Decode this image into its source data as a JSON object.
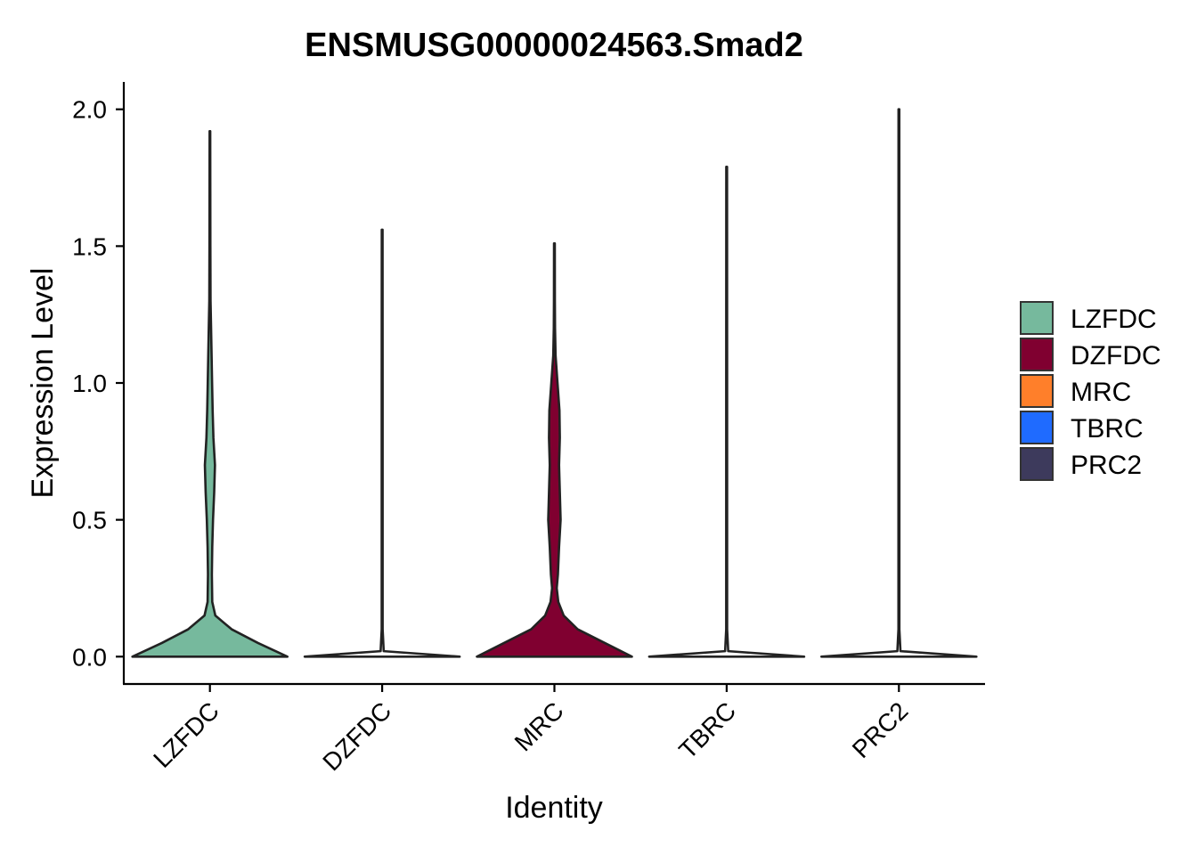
{
  "chart_data": {
    "type": "violin",
    "title": "ENSMUSG00000024563.Smad2",
    "xlabel": "Identity",
    "ylabel": "Expression Level",
    "ylim": [
      -0.1,
      2.1
    ],
    "yticks": [
      "0.0",
      "0.5",
      "1.0",
      "1.5",
      "2.0"
    ],
    "categories": [
      "LZFDC",
      "DZFDC",
      "MRC",
      "TBRC",
      "PRC2"
    ],
    "grid": false,
    "legend_position": "right",
    "series": [
      {
        "name": "LZFDC",
        "color": "#76B99D",
        "max": 1.92,
        "density": [
          [
            0.0,
            1.0
          ],
          [
            0.05,
            0.62
          ],
          [
            0.1,
            0.28
          ],
          [
            0.15,
            0.07
          ],
          [
            0.2,
            0.03
          ],
          [
            0.3,
            0.025
          ],
          [
            0.4,
            0.03
          ],
          [
            0.5,
            0.04
          ],
          [
            0.6,
            0.055
          ],
          [
            0.7,
            0.065
          ],
          [
            0.8,
            0.045
          ],
          [
            0.9,
            0.035
          ],
          [
            1.0,
            0.028
          ],
          [
            1.2,
            0.015
          ],
          [
            1.3,
            0.008
          ],
          [
            1.5,
            0.006
          ],
          [
            1.7,
            0.005
          ],
          [
            1.92,
            0.004
          ]
        ]
      },
      {
        "name": "DZFDC",
        "color": "#800030",
        "max": 1.56,
        "density": [
          [
            0.0,
            1.0
          ],
          [
            0.02,
            0.02
          ],
          [
            0.1,
            0.006
          ],
          [
            0.5,
            0.006
          ],
          [
            1.0,
            0.006
          ],
          [
            1.56,
            0.005
          ]
        ]
      },
      {
        "name": "MRC",
        "color": "#FF7F2A",
        "max": 1.51,
        "density": [
          [
            0.0,
            1.0
          ],
          [
            0.05,
            0.65
          ],
          [
            0.1,
            0.3
          ],
          [
            0.15,
            0.12
          ],
          [
            0.2,
            0.05
          ],
          [
            0.25,
            0.03
          ],
          [
            0.3,
            0.045
          ],
          [
            0.4,
            0.06
          ],
          [
            0.5,
            0.08
          ],
          [
            0.6,
            0.07
          ],
          [
            0.7,
            0.06
          ],
          [
            0.8,
            0.07
          ],
          [
            0.9,
            0.065
          ],
          [
            1.0,
            0.04
          ],
          [
            1.1,
            0.015
          ],
          [
            1.2,
            0.008
          ],
          [
            1.3,
            0.006
          ],
          [
            1.51,
            0.005
          ]
        ]
      },
      {
        "name": "TBRC",
        "color": "#1F6BFF",
        "max": 1.79,
        "density": [
          [
            0.0,
            1.0
          ],
          [
            0.02,
            0.02
          ],
          [
            0.1,
            0.006
          ],
          [
            0.5,
            0.006
          ],
          [
            1.0,
            0.006
          ],
          [
            1.79,
            0.005
          ]
        ]
      },
      {
        "name": "PRC2",
        "color": "#3D3A5C",
        "max": 2.0,
        "density": [
          [
            0.0,
            1.0
          ],
          [
            0.02,
            0.02
          ],
          [
            0.1,
            0.006
          ],
          [
            0.5,
            0.006
          ],
          [
            1.0,
            0.006
          ],
          [
            2.0,
            0.005
          ]
        ]
      }
    ],
    "violin_fill_colors": [
      "#76B99D",
      "#FFFFFF",
      "#800030",
      "#FFFFFF",
      "#FFFFFF"
    ],
    "violin_widths": [
      1.0,
      1.0,
      1.0,
      1.0,
      1.0
    ],
    "outline_color": "#222222"
  }
}
